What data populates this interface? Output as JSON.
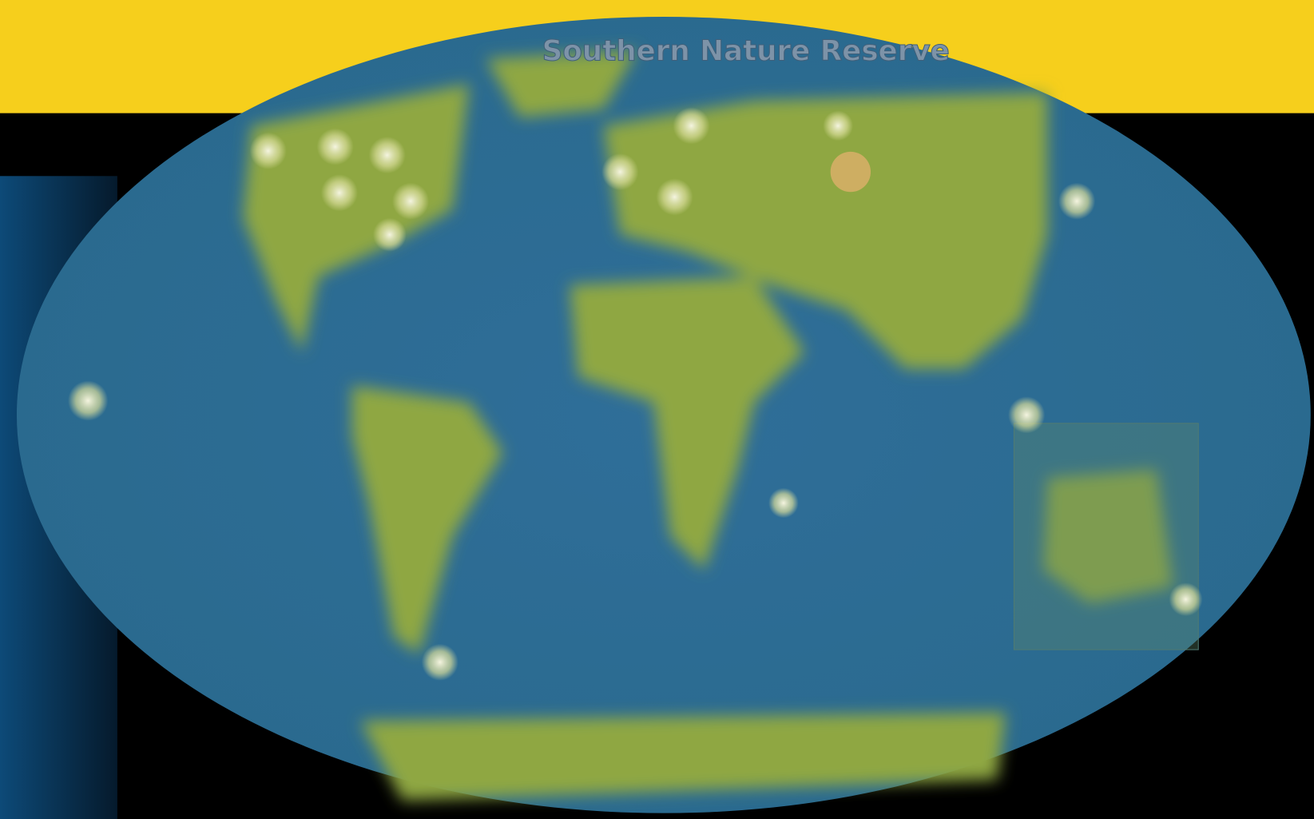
{
  "map": {
    "title": "Southern Nature Reserve"
  }
}
